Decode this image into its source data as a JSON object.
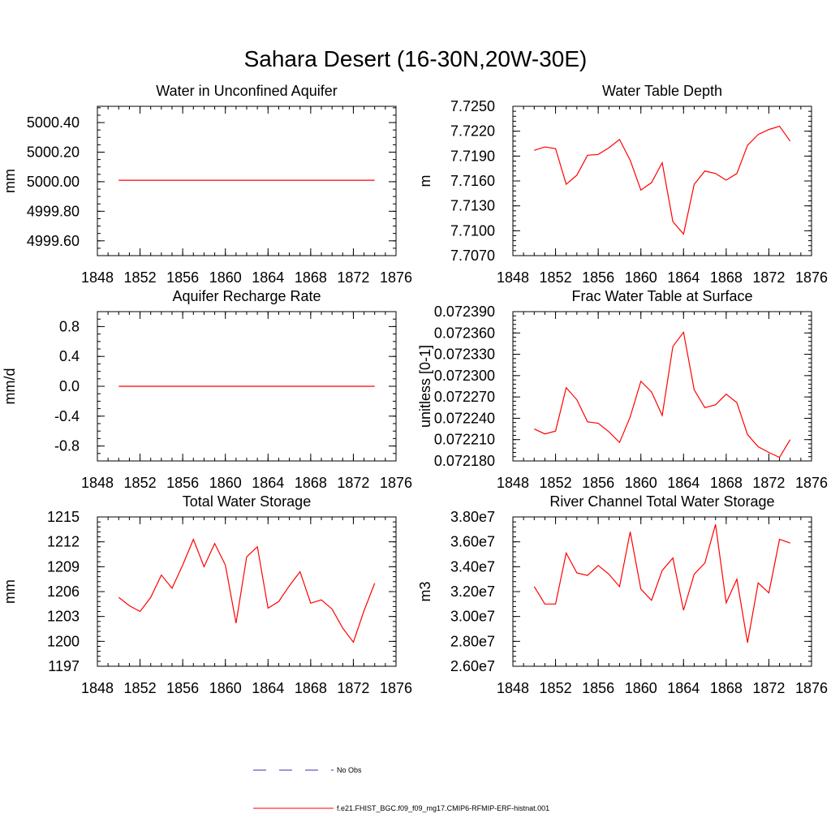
{
  "figure": {
    "title": "Sahara Desert (16-30N,20W-30E)"
  },
  "colors": {
    "model_line": "#ff0000",
    "obs_line": "#3333aa",
    "axis": "#000000"
  },
  "legend": {
    "placement": "bottom-center",
    "entries": [
      {
        "label": "No Obs",
        "style": "dashed",
        "color": "#3333aa"
      },
      {
        "label": "f.e21.FHIST_BGC.f09_f09_mg17.CMIP6-RFMIP-ERF-histnat.001",
        "style": "solid",
        "color": "#ff0000"
      }
    ]
  },
  "chart_data": [
    {
      "type": "line",
      "title": "Water in Unconfined Aquifer",
      "ylabel": "mm",
      "xlim": [
        1848,
        1876
      ],
      "xticks": [
        1848,
        1852,
        1856,
        1860,
        1864,
        1868,
        1872,
        1876
      ],
      "xminor": 1,
      "ylim": [
        4999.5,
        5000.51
      ],
      "yticks": [
        4999.6,
        4999.8,
        5000.0,
        5000.2,
        5000.4
      ],
      "ytick_labels": [
        "4999.60",
        "4999.80",
        "5000.00",
        "5000.20",
        "5000.40"
      ],
      "yminor": 0.05,
      "x": [
        1850,
        1851,
        1852,
        1853,
        1854,
        1855,
        1856,
        1857,
        1858,
        1859,
        1860,
        1861,
        1862,
        1863,
        1864,
        1865,
        1866,
        1867,
        1868,
        1869,
        1870,
        1871,
        1872,
        1873,
        1874
      ],
      "series": [
        {
          "values": [
            5000.01,
            5000.01,
            5000.01,
            5000.01,
            5000.01,
            5000.01,
            5000.01,
            5000.01,
            5000.01,
            5000.01,
            5000.01,
            5000.01,
            5000.01,
            5000.01,
            5000.01,
            5000.01,
            5000.01,
            5000.01,
            5000.01,
            5000.01,
            5000.01,
            5000.01,
            5000.01,
            5000.01,
            5000.01
          ]
        }
      ]
    },
    {
      "type": "line",
      "title": "Water Table Depth",
      "ylabel": "m",
      "xlim": [
        1848,
        1876
      ],
      "xticks": [
        1848,
        1852,
        1856,
        1860,
        1864,
        1868,
        1872,
        1876
      ],
      "xminor": 1,
      "ylim": [
        7.707,
        7.725
      ],
      "yticks": [
        7.707,
        7.71,
        7.713,
        7.716,
        7.719,
        7.722,
        7.725
      ],
      "ytick_labels": [
        "7.7070",
        "7.7100",
        "7.7130",
        "7.7160",
        "7.7190",
        "7.7220",
        "7.7250"
      ],
      "yminor": 0.0006,
      "x": [
        1850,
        1851,
        1852,
        1853,
        1854,
        1855,
        1856,
        1857,
        1858,
        1859,
        1860,
        1861,
        1862,
        1863,
        1864,
        1865,
        1866,
        1867,
        1868,
        1869,
        1870,
        1871,
        1872,
        1873,
        1874
      ],
      "series": [
        {
          "values": [
            7.7197,
            7.7201,
            7.7199,
            7.7156,
            7.7167,
            7.7191,
            7.7192,
            7.72,
            7.721,
            7.7185,
            7.7149,
            7.7158,
            7.7182,
            7.7111,
            7.7096,
            7.7156,
            7.7172,
            7.7169,
            7.7161,
            7.7169,
            7.7203,
            7.7216,
            7.7222,
            7.7226,
            7.7208
          ]
        }
      ]
    },
    {
      "type": "line",
      "title": "Aquifer Recharge Rate",
      "ylabel": "mm/d",
      "xlim": [
        1848,
        1876
      ],
      "xticks": [
        1848,
        1852,
        1856,
        1860,
        1864,
        1868,
        1872,
        1876
      ],
      "xminor": 1,
      "ylim": [
        -1.0,
        1.0
      ],
      "yticks": [
        -0.8,
        -0.4,
        0.0,
        0.4,
        0.8
      ],
      "ytick_labels": [
        "-0.8",
        "-0.4",
        "0.0",
        "0.4",
        "0.8"
      ],
      "yminor": 0.1,
      "x": [
        1850,
        1851,
        1852,
        1853,
        1854,
        1855,
        1856,
        1857,
        1858,
        1859,
        1860,
        1861,
        1862,
        1863,
        1864,
        1865,
        1866,
        1867,
        1868,
        1869,
        1870,
        1871,
        1872,
        1873,
        1874
      ],
      "series": [
        {
          "values": [
            0,
            0,
            0,
            0,
            0,
            0,
            0,
            0,
            0,
            0,
            0,
            0,
            0,
            0,
            0,
            0,
            0,
            0,
            0,
            0,
            0,
            0,
            0,
            0,
            0
          ]
        }
      ]
    },
    {
      "type": "line",
      "title": "Frac Water Table at Surface",
      "ylabel": "unitless [0-1]",
      "xlim": [
        1848,
        1876
      ],
      "xticks": [
        1848,
        1852,
        1856,
        1860,
        1864,
        1868,
        1872,
        1876
      ],
      "xminor": 1,
      "ylim": [
        0.07218,
        0.07239
      ],
      "yticks": [
        0.07218,
        0.07221,
        0.07224,
        0.07227,
        0.0723,
        0.07233,
        0.07236,
        0.07239
      ],
      "ytick_labels": [
        "0.072180",
        "0.072210",
        "0.072240",
        "0.072270",
        "0.072300",
        "0.072330",
        "0.072360",
        "0.072390"
      ],
      "yminor": 6e-06,
      "x": [
        1850,
        1851,
        1852,
        1853,
        1854,
        1855,
        1856,
        1857,
        1858,
        1859,
        1860,
        1861,
        1862,
        1863,
        1864,
        1865,
        1866,
        1867,
        1868,
        1869,
        1870,
        1871,
        1872,
        1873,
        1874
      ],
      "series": [
        {
          "values": [
            0.072225,
            0.072218,
            0.072222,
            0.072283,
            0.072266,
            0.072235,
            0.072233,
            0.072221,
            0.072206,
            0.072242,
            0.072292,
            0.072277,
            0.072244,
            0.072341,
            0.072361,
            0.07228,
            0.072255,
            0.072259,
            0.072274,
            0.072262,
            0.072217,
            0.0722,
            0.072192,
            0.072185,
            0.07221
          ]
        }
      ]
    },
    {
      "type": "line",
      "title": "Total Water Storage",
      "ylabel": "mm",
      "xlim": [
        1848,
        1876
      ],
      "xticks": [
        1848,
        1852,
        1856,
        1860,
        1864,
        1868,
        1872,
        1876
      ],
      "xminor": 1,
      "ylim": [
        1197,
        1215
      ],
      "yticks": [
        1197,
        1200,
        1203,
        1206,
        1209,
        1212,
        1215
      ],
      "ytick_labels": [
        "1197",
        "1200",
        "1203",
        "1206",
        "1209",
        "1212",
        "1215"
      ],
      "yminor": 0.6,
      "x": [
        1850,
        1851,
        1852,
        1853,
        1854,
        1855,
        1856,
        1857,
        1858,
        1859,
        1860,
        1861,
        1862,
        1863,
        1864,
        1865,
        1866,
        1867,
        1868,
        1869,
        1870,
        1871,
        1872,
        1873,
        1874
      ],
      "series": [
        {
          "values": [
            1205.3,
            1204.3,
            1203.6,
            1205.3,
            1208.0,
            1206.4,
            1209.2,
            1212.3,
            1209.0,
            1211.8,
            1209.2,
            1202.2,
            1210.2,
            1211.4,
            1204.0,
            1204.8,
            1206.7,
            1208.4,
            1204.6,
            1205.0,
            1203.9,
            1201.6,
            1199.9,
            1203.7,
            1207.0
          ]
        }
      ]
    },
    {
      "type": "line",
      "title": "River Channel Total Water Storage",
      "ylabel": "m3",
      "xlim": [
        1848,
        1876
      ],
      "xticks": [
        1848,
        1852,
        1856,
        1860,
        1864,
        1868,
        1872,
        1876
      ],
      "xminor": 1,
      "ylim": [
        26000000,
        38000000
      ],
      "yticks": [
        26000000,
        28000000,
        30000000,
        32000000,
        34000000,
        36000000,
        38000000
      ],
      "ytick_labels": [
        "2.60e7",
        "2.80e7",
        "3.00e7",
        "3.20e7",
        "3.40e7",
        "3.60e7",
        "3.80e7"
      ],
      "yminor": 400000,
      "x": [
        1850,
        1851,
        1852,
        1853,
        1854,
        1855,
        1856,
        1857,
        1858,
        1859,
        1860,
        1861,
        1862,
        1863,
        1864,
        1865,
        1866,
        1867,
        1868,
        1869,
        1870,
        1871,
        1872,
        1873,
        1874
      ],
      "series": [
        {
          "values": [
            32400000,
            31000000,
            31000000,
            35100000,
            33500000,
            33300000,
            34100000,
            33400000,
            32400000,
            36800000,
            32200000,
            31300000,
            33700000,
            34700000,
            30500000,
            33400000,
            34300000,
            37400000,
            31100000,
            33000000,
            27900000,
            32700000,
            31900000,
            36200000,
            35900000
          ]
        }
      ]
    }
  ]
}
